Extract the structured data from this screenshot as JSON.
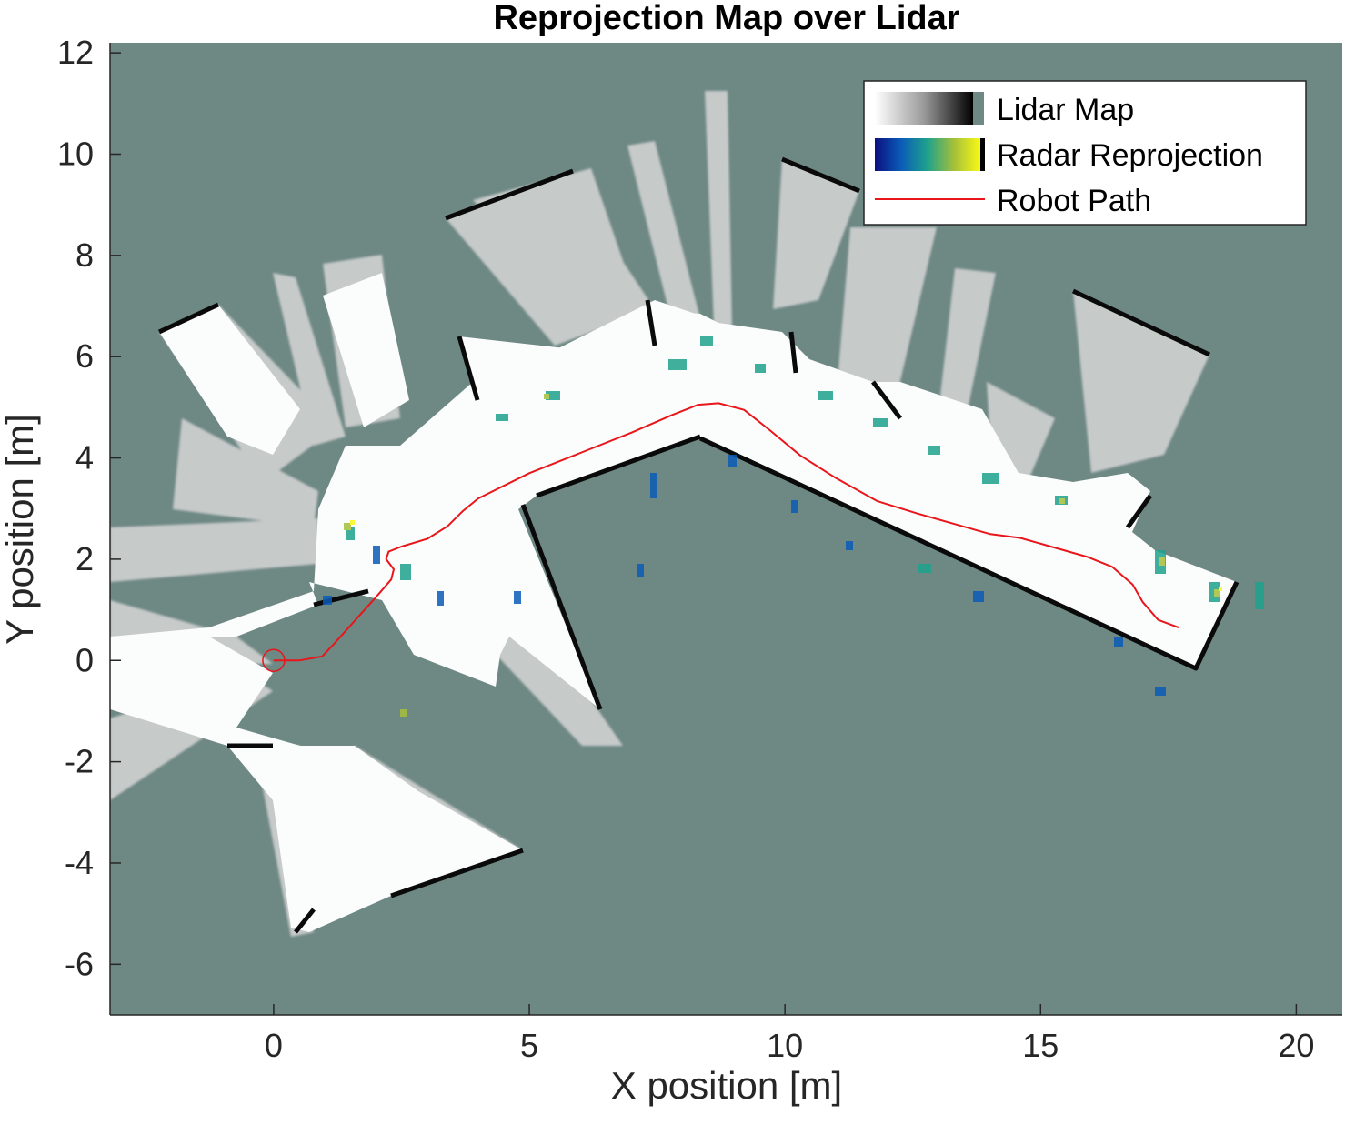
{
  "chart_data": {
    "type": "map",
    "title": "Reprojection Map over Lidar",
    "xlabel": "X position [m]",
    "ylabel": "Y position [m]",
    "xlim": [
      -3.2,
      20.9
    ],
    "ylim": [
      -7,
      12.2
    ],
    "xticks": [
      0,
      5,
      10,
      15,
      20
    ],
    "yticks": [
      -6,
      -4,
      -2,
      0,
      2,
      4,
      6,
      8,
      10,
      12
    ],
    "background_color": "#6e8884",
    "legend_position": "top-right",
    "legend": [
      {
        "label": "Lidar Map",
        "kind": "grayscale-colorbar"
      },
      {
        "label": "Radar Reprojection",
        "kind": "parula-colorbar"
      },
      {
        "label": "Robot Path",
        "kind": "line",
        "color": "#e8161a"
      }
    ],
    "series": [
      {
        "name": "Robot Path",
        "color": "#e8161a",
        "x": [
          0,
          0.5,
          0.95,
          1.2,
          1.6,
          2.0,
          2.3,
          2.35,
          2.2,
          2.25,
          2.5,
          3.0,
          3.4,
          3.7,
          4.0,
          5.0,
          6.0,
          7.0,
          7.8,
          8.3,
          8.7,
          9.2,
          9.7,
          10.3,
          11.0,
          11.8,
          12.6,
          13.3,
          14.0,
          14.6,
          15.2,
          15.9,
          16.4,
          16.8,
          17.0,
          17.3,
          17.7
        ],
        "y": [
          0,
          0.0,
          0.08,
          0.35,
          0.8,
          1.25,
          1.6,
          1.8,
          2.0,
          2.15,
          2.25,
          2.4,
          2.65,
          2.95,
          3.2,
          3.7,
          4.1,
          4.5,
          4.85,
          5.05,
          5.08,
          4.95,
          4.55,
          4.05,
          3.6,
          3.15,
          2.9,
          2.7,
          2.5,
          2.42,
          2.25,
          2.05,
          1.85,
          1.5,
          1.15,
          0.8,
          0.65
        ]
      }
    ],
    "start_marker": {
      "x": 0,
      "y": 0,
      "shape": "circle",
      "color": "#e8161a"
    }
  }
}
